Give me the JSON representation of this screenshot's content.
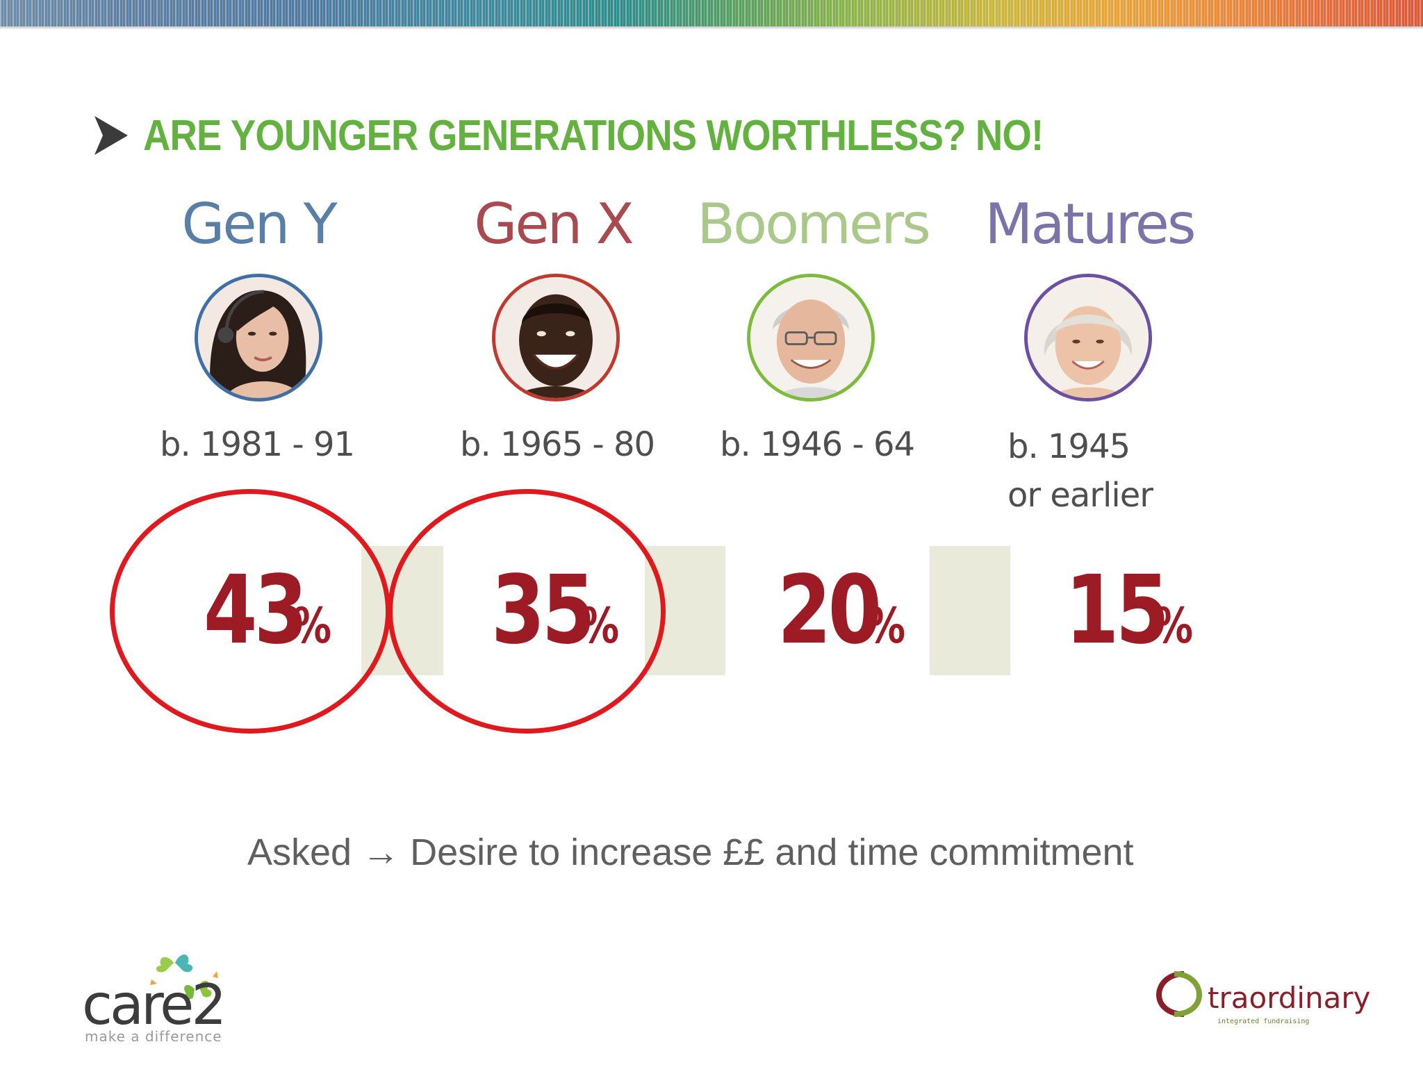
{
  "slide": {
    "title": "ARE YOUNGER GENERATIONS WORTHLESS?  NO!",
    "note": "Asked → Desire to increase ££ and time commitment"
  },
  "generations": [
    {
      "name": "Gen Y",
      "born": "b. 1981 - 91",
      "born_extra": "",
      "percent": "43",
      "percent_symbol": "%",
      "circled": true,
      "name_color": "#5a7fa6",
      "ring_color": "#3f6fa5"
    },
    {
      "name": "Gen X",
      "born": "b. 1965 - 80",
      "born_extra": "",
      "percent": "35",
      "percent_symbol": "%",
      "circled": true,
      "name_color": "#a84a4f",
      "ring_color": "#c0392f"
    },
    {
      "name": "Boomers",
      "born": "b. 1946 - 64",
      "born_extra": "",
      "percent": "20",
      "percent_symbol": "%",
      "circled": false,
      "name_color": "#a9c889",
      "ring_color": "#7dbb3c"
    },
    {
      "name": "Matures",
      "born": "b. 1945",
      "born_extra": "or earlier",
      "percent": "15",
      "percent_symbol": "%",
      "circled": false,
      "name_color": "#7c73a8",
      "ring_color": "#6b4fa3"
    }
  ],
  "logos": {
    "care2_word": "care2",
    "care2_tagline": "make a difference",
    "xtra_word": "traordinary",
    "xtra_tagline": "integrated fundraising"
  },
  "colors": {
    "title_green": "#63b13f",
    "percent_red": "#9c1b24",
    "highlight_ring": "#e0191f",
    "band_beige": "#e9ead9"
  }
}
